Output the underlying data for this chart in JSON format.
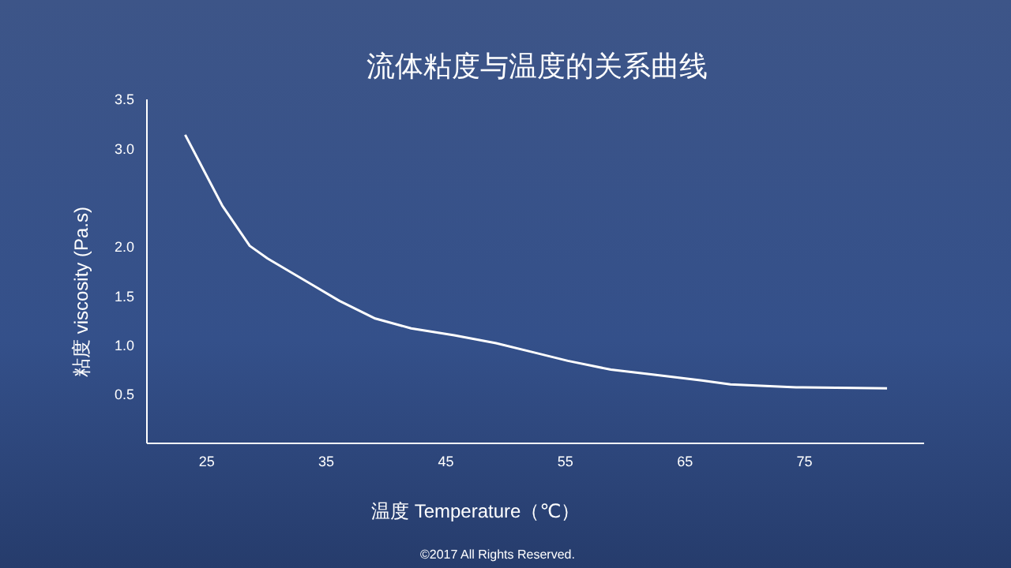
{
  "chart_data": {
    "type": "line",
    "title": "流体粘度与温度的关系曲线",
    "xlabel": "温度 Temperature（℃）",
    "ylabel": "粘度 viscosity (Pa.s)",
    "x": [
      23.2,
      26.3,
      28.6,
      30.1,
      33.6,
      36.1,
      39.1,
      42.1,
      45.7,
      49.2,
      52.2,
      55.2,
      58.8,
      62.3,
      66.4,
      68.8,
      74.3,
      81.9
    ],
    "series": [
      {
        "color": "#ffffff",
        "values": [
          3.14,
          2.42,
          2.01,
          1.88,
          1.63,
          1.45,
          1.27,
          1.17,
          1.1,
          1.02,
          0.93,
          0.84,
          0.75,
          0.7,
          0.64,
          0.6,
          0.57,
          0.56
        ]
      }
    ],
    "xlim": [
      20,
      85
    ],
    "xticks": [
      25,
      35,
      45,
      55,
      65,
      75
    ],
    "ylim": [
      0,
      3.5
    ],
    "yticks": [
      0.5,
      {
        "value": 1,
        "label": "1.0"
      },
      1.5,
      {
        "value": 2,
        "label": "2.0"
      },
      {
        "value": 3,
        "label": "3.0"
      },
      3.5
    ],
    "annotations": [
      "©2017 All Rights Reserved."
    ]
  }
}
